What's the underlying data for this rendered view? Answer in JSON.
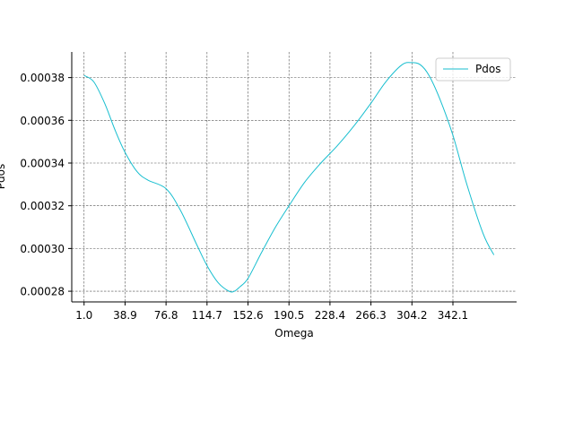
{
  "chart_data": {
    "type": "line",
    "xlabel": "Omega",
    "ylabel": "Pdos",
    "xlim": [
      -10.4,
      401.0
    ],
    "ylim": [
      0.000275,
      0.000392
    ],
    "x_ticks": [
      {
        "value": 1.0,
        "label": "1.0"
      },
      {
        "value": 38.9,
        "label": "38.9"
      },
      {
        "value": 76.8,
        "label": "76.8"
      },
      {
        "value": 114.7,
        "label": "114.7"
      },
      {
        "value": 152.6,
        "label": "152.6"
      },
      {
        "value": 190.5,
        "label": "190.5"
      },
      {
        "value": 228.4,
        "label": "228.4"
      },
      {
        "value": 266.3,
        "label": "266.3"
      },
      {
        "value": 304.2,
        "label": "304.2"
      },
      {
        "value": 342.1,
        "label": "342.1"
      }
    ],
    "y_ticks": [
      {
        "value": 0.00028,
        "label": "0.00028"
      },
      {
        "value": 0.0003,
        "label": "0.00030"
      },
      {
        "value": 0.00032,
        "label": "0.00032"
      },
      {
        "value": 0.00034,
        "label": "0.00034"
      },
      {
        "value": 0.00036,
        "label": "0.00036"
      },
      {
        "value": 0.00038,
        "label": "0.00038"
      }
    ],
    "grid": true,
    "legend": {
      "position": "top-right"
    },
    "series": [
      {
        "name": "Pdos",
        "color": "#17becf",
        "x": [
          1.0,
          10.0,
          20.0,
          30.0,
          38.9,
          50.0,
          60.0,
          76.8,
          90.0,
          105.0,
          114.7,
          125.0,
          135.0,
          140.0,
          145.0,
          152.6,
          165.0,
          178.0,
          190.5,
          205.0,
          220.0,
          235.0,
          250.0,
          266.3,
          280.0,
          295.0,
          304.2,
          312.0,
          320.0,
          330.0,
          342.1,
          355.0,
          370.0,
          380.0
        ],
        "y": [
          0.000381,
          0.000378,
          0.000368,
          0.000355,
          0.000345,
          0.000336,
          0.000332,
          0.000328,
          0.000318,
          0.000302,
          0.000292,
          0.000284,
          0.00028,
          0.00028,
          0.000282,
          0.000286,
          0.000298,
          0.00031,
          0.00032,
          0.000331,
          0.00034,
          0.000348,
          0.000357,
          0.000368,
          0.000378,
          0.000386,
          0.000387,
          0.000386,
          0.000381,
          0.00037,
          0.000353,
          0.00033,
          0.000307,
          0.000297
        ]
      }
    ]
  }
}
